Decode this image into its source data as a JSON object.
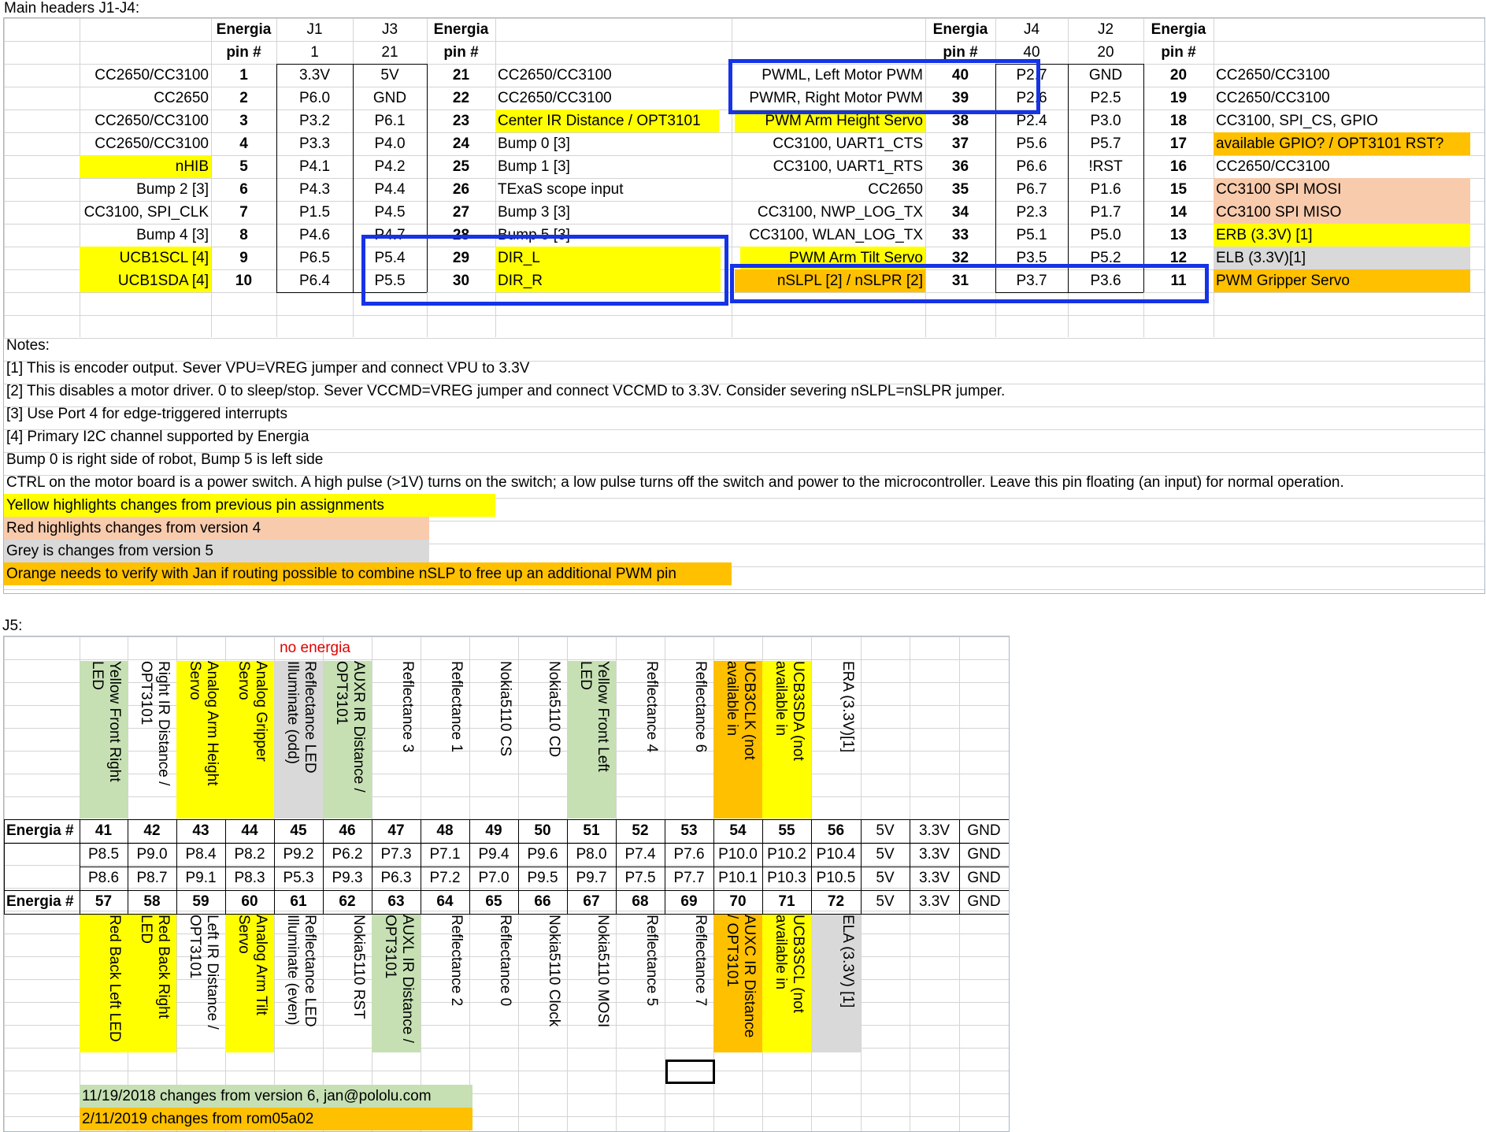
{
  "section1_title": "Main headers J1-J4:",
  "section2_title": "J5:",
  "colors": {
    "yellow": "#ffff00",
    "orange": "#ffc000",
    "pink": "#f8cbad",
    "grey": "#d9d9d9",
    "green": "#c6e0b4",
    "blue_box": "#1633e6"
  },
  "main": {
    "left_header1": [
      "Energia",
      "J1",
      "J3",
      "Energia"
    ],
    "left_header2": [
      "pin #",
      "1",
      "21",
      "pin #"
    ],
    "right_header1": [
      "Energia",
      "J4",
      "J2",
      "Energia"
    ],
    "right_header2": [
      "pin #",
      "40",
      "20",
      "pin #"
    ],
    "rows": [
      {
        "ldesc": "CC2650/CC3100",
        "lpin": "1",
        "j1": "3.3V",
        "j3": "5V",
        "rpin": "21",
        "rdesc": "CC2650/CC3100",
        "j4desc": "PWML, Left Motor PWM",
        "j4pin": "40",
        "j4": "P2.7",
        "j2": "GND",
        "j2pin": "20",
        "j2desc": "CC2650/CC3100"
      },
      {
        "ldesc": "CC2650",
        "lpin": "2",
        "j1": "P6.0",
        "j3": "GND",
        "rpin": "22",
        "rdesc": "CC2650/CC3100",
        "j4desc": "PWMR, Right Motor PWM",
        "j4pin": "39",
        "j4": "P2.6",
        "j2": "P2.5",
        "j2pin": "19",
        "j2desc": "CC2650/CC3100"
      },
      {
        "ldesc": "CC2650/CC3100",
        "lpin": "3",
        "j1": "P3.2",
        "j3": "P6.1",
        "rpin": "23",
        "rdesc": "Center IR Distance / OPT3101",
        "j4desc": "PWM Arm Height Servo",
        "j4pin": "38",
        "j4": "P2.4",
        "j2": "P3.0",
        "j2pin": "18",
        "j2desc": "CC3100, SPI_CS, GPIO"
      },
      {
        "ldesc": "CC2650/CC3100",
        "lpin": "4",
        "j1": "P3.3",
        "j3": "P4.0",
        "rpin": "24",
        "rdesc": "Bump 0 [3]",
        "j4desc": "CC3100, UART1_CTS",
        "j4pin": "37",
        "j4": "P5.6",
        "j2": "P5.7",
        "j2pin": "17",
        "j2desc": "available GPIO? / OPT3101 RST?"
      },
      {
        "ldesc": "nHIB",
        "lpin": "5",
        "j1": "P4.1",
        "j3": "P4.2",
        "rpin": "25",
        "rdesc": "Bump 1 [3]",
        "j4desc": "CC3100, UART1_RTS",
        "j4pin": "36",
        "j4": "P6.6",
        "j2": "!RST",
        "j2pin": "16",
        "j2desc": "CC2650/CC3100"
      },
      {
        "ldesc": "Bump 2 [3]",
        "lpin": "6",
        "j1": "P4.3",
        "j3": "P4.4",
        "rpin": "26",
        "rdesc": "TExaS scope input",
        "j4desc": "CC2650",
        "j4pin": "35",
        "j4": "P6.7",
        "j2": "P1.6",
        "j2pin": "15",
        "j2desc": "CC3100 SPI MOSI"
      },
      {
        "ldesc": "CC3100, SPI_CLK",
        "lpin": "7",
        "j1": "P1.5",
        "j3": "P4.5",
        "rpin": "27",
        "rdesc": "Bump 3 [3]",
        "j4desc": "CC3100, NWP_LOG_TX",
        "j4pin": "34",
        "j4": "P2.3",
        "j2": "P1.7",
        "j2pin": "14",
        "j2desc": "CC3100 SPI MISO"
      },
      {
        "ldesc": "Bump 4 [3]",
        "lpin": "8",
        "j1": "P4.6",
        "j3": "P4.7",
        "rpin": "28",
        "rdesc": "Bump 5 [3]",
        "j4desc": "CC3100, WLAN_LOG_TX",
        "j4pin": "33",
        "j4": "P5.1",
        "j2": "P5.0",
        "j2pin": "13",
        "j2desc": "ERB (3.3V) [1]"
      },
      {
        "ldesc": "UCB1SCL [4]",
        "lpin": "9",
        "j1": "P6.5",
        "j3": "P5.4",
        "rpin": "29",
        "rdesc": "DIR_L",
        "j4desc": "PWM Arm Tilt Servo",
        "j4pin": "32",
        "j4": "P3.5",
        "j2": "P5.2",
        "j2pin": "12",
        "j2desc": "ELB (3.3V)[1]"
      },
      {
        "ldesc": "UCB1SDA [4]",
        "lpin": "10",
        "j1": "P6.4",
        "j3": "P5.5",
        "rpin": "30",
        "rdesc": "DIR_R",
        "j4desc": "nSLPL [2] / nSLPR [2]",
        "j4pin": "31",
        "j4": "P3.7",
        "j2": "P3.6",
        "j2pin": "11",
        "j2desc": "PWM Gripper Servo"
      }
    ],
    "notes": [
      "Notes:",
      "[1] This is encoder output.  Sever VPU=VREG jumper and connect VPU to 3.3V",
      "[2] This disables a motor driver.  0 to sleep/stop.  Sever VCCMD=VREG jumper and connect VCCMD to 3.3V.  Consider severing nSLPL=nSLPR jumper.",
      "[3] Use Port 4 for edge-triggered interrupts",
      "[4] Primary I2C channel supported by Energia",
      "Bump 0 is right side of robot, Bump 5 is left side",
      "CTRL on the motor board is a power switch.  A high pulse (>1V) turns on the switch; a low pulse turns off the switch and power to the microcontroller.  Leave this pin floating (an input) for normal operation."
    ],
    "legend": [
      {
        "text": "Yellow highlights changes from previous pin assignments",
        "color": "yellow"
      },
      {
        "text": "Red highlights changes from version 4",
        "color": "pink"
      },
      {
        "text": "Grey is changes from version 5",
        "color": "grey"
      },
      {
        "text": "Orange needs to verify with Jan if routing possible to combine nSLP to free up an additional PWM pin",
        "color": "orange"
      }
    ]
  },
  "j5": {
    "no_energia": "no energia",
    "row_label": "Energia #",
    "top_labels": [
      {
        "text": "Yellow Front Right\nLED",
        "color": "green"
      },
      {
        "text": "Right IR Distance /\nOPT3101",
        "color": ""
      },
      {
        "text": "Analog Arm Height\nServo",
        "color": "yellow"
      },
      {
        "text": "Analog Gripper\nServo",
        "color": "yellow"
      },
      {
        "text": "Reflectance LED\nIlluminate (odd)",
        "color": "grey"
      },
      {
        "text": "AUXR IR Distance /\nOPT3101",
        "color": "green"
      },
      {
        "text": "Reflectance 3",
        "color": ""
      },
      {
        "text": "Reflectance 1",
        "color": ""
      },
      {
        "text": "Nokia5110 CS",
        "color": ""
      },
      {
        "text": "Nokia5110 CD",
        "color": ""
      },
      {
        "text": "Yellow Front Left\nLED",
        "color": "green"
      },
      {
        "text": "Reflectance 4",
        "color": ""
      },
      {
        "text": "Reflectance 6",
        "color": ""
      },
      {
        "text": "UCB3CLK (not\navailable in",
        "color": "orange"
      },
      {
        "text": "UCB3SDA (not\navailable in",
        "color": "yellow"
      },
      {
        "text": "ERA (3.3V)[1]",
        "color": ""
      }
    ],
    "energia_top": [
      "41",
      "42",
      "43",
      "44",
      "45",
      "46",
      "47",
      "48",
      "49",
      "50",
      "51",
      "52",
      "53",
      "54",
      "55",
      "56",
      "5V",
      "3.3V",
      "GND"
    ],
    "pins_a": [
      "P8.5",
      "P9.0",
      "P8.4",
      "P8.2",
      "P9.2",
      "P6.2",
      "P7.3",
      "P7.1",
      "P9.4",
      "P9.6",
      "P8.0",
      "P7.4",
      "P7.6",
      "P10.0",
      "P10.2",
      "P10.4",
      "5V",
      "3.3V",
      "GND"
    ],
    "pins_b": [
      "P8.6",
      "P8.7",
      "P9.1",
      "P8.3",
      "P5.3",
      "P9.3",
      "P6.3",
      "P7.2",
      "P7.0",
      "P9.5",
      "P9.7",
      "P7.5",
      "P7.7",
      "P10.1",
      "P10.3",
      "P10.5",
      "5V",
      "3.3V",
      "GND"
    ],
    "energia_bottom": [
      "57",
      "58",
      "59",
      "60",
      "61",
      "62",
      "63",
      "64",
      "65",
      "66",
      "67",
      "68",
      "69",
      "70",
      "71",
      "72",
      "5V",
      "3.3V",
      "GND"
    ],
    "bottom_labels": [
      {
        "text": "Red Back Left LED",
        "color": "yellow"
      },
      {
        "text": "Red Back Right\nLED",
        "color": "yellow"
      },
      {
        "text": "Left IR Distance /\nOPT3101",
        "color": ""
      },
      {
        "text": "Analog Arm Tilt\nServo",
        "color": "yellow"
      },
      {
        "text": "Reflectance LED\nIlluminate (even)",
        "color": ""
      },
      {
        "text": "Nokia5110 RST",
        "color": ""
      },
      {
        "text": "AUXL IR Distance /\nOPT3101",
        "color": "green"
      },
      {
        "text": "Reflectance 2",
        "color": ""
      },
      {
        "text": "Reflectance 0",
        "color": ""
      },
      {
        "text": "Nokia5110 Clock",
        "color": ""
      },
      {
        "text": "Nokia5110 MOSI",
        "color": ""
      },
      {
        "text": "Reflectance 5",
        "color": ""
      },
      {
        "text": "Reflectance 7",
        "color": ""
      },
      {
        "text": "AUXC IR Distance\n/ OPT3101",
        "color": "orange"
      },
      {
        "text": "UCB3SCL (not\navailable in",
        "color": "yellow"
      },
      {
        "text": "ELA (3.3V) [1]",
        "color": "grey"
      }
    ],
    "footer": [
      {
        "text": "11/19/2018 changes from version 6, jan@pololu.com",
        "color": "green"
      },
      {
        "text": "2/11/2019 changes from rom05a02",
        "color": "orange"
      }
    ]
  }
}
